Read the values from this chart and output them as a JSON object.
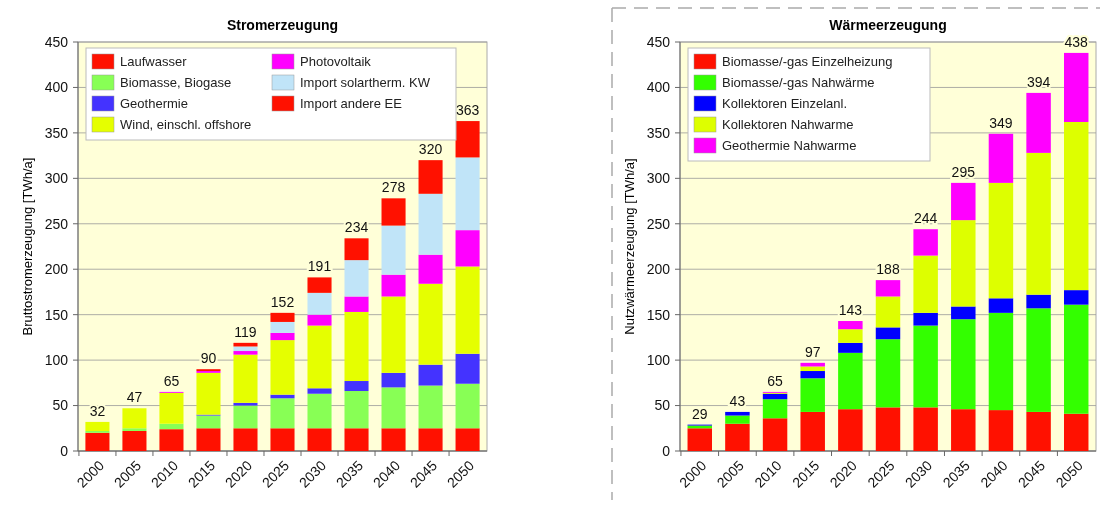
{
  "chart_data": [
    {
      "type": "bar",
      "title": "Stromerzeugung",
      "ylabel": "Bruttostromerzeugung [TWh/a]",
      "stacked": true,
      "categories": [
        "2000",
        "2005",
        "2010",
        "2015",
        "2020",
        "2025",
        "2030",
        "2035",
        "2040",
        "2045",
        "2050"
      ],
      "series": [
        {
          "name": "Laufwasser",
          "color": "#ff1100",
          "values": [
            20,
            22,
            24,
            25,
            25,
            25,
            25,
            25,
            25,
            25,
            25
          ]
        },
        {
          "name": "Biomasse, Biogase",
          "color": "#88ff55",
          "values": [
            2,
            3,
            6,
            14,
            25,
            33,
            38,
            41,
            45,
            47,
            49
          ]
        },
        {
          "name": "Geothermie",
          "color": "#4433ff",
          "values": [
            0,
            0,
            0,
            1,
            3,
            4,
            6,
            11,
            16,
            23,
            33
          ]
        },
        {
          "name": "Wind, einschl. offshore",
          "color": "#e5ff00",
          "values": [
            10,
            22,
            34,
            46,
            53,
            60,
            69,
            76,
            84,
            89,
            96
          ]
        },
        {
          "name": "Photovoltaik",
          "color": "#ff00ff",
          "values": [
            0,
            0,
            1,
            2,
            4,
            8,
            12,
            17,
            24,
            32,
            40
          ]
        },
        {
          "name": "Import solartherm. KW",
          "color": "#c0e4f8",
          "values": [
            0,
            0,
            0,
            0,
            5,
            12,
            24,
            40,
            54,
            67,
            80
          ]
        },
        {
          "name": "Import andere EE",
          "color": "#ff1100",
          "values": [
            0,
            0,
            0,
            2,
            4,
            10,
            17,
            24,
            30,
            37,
            40
          ]
        }
      ],
      "totals": [
        "32",
        "47",
        "65",
        "90",
        "119",
        "152",
        "191",
        "234",
        "278",
        "320",
        "363"
      ],
      "ylim": [
        0,
        450
      ],
      "yticks": [
        0,
        50,
        100,
        150,
        200,
        250,
        300,
        350,
        400,
        450
      ],
      "grid": "y",
      "legend": "top left"
    },
    {
      "type": "bar",
      "title": "Wärmeerzeugung",
      "ylabel": "Nutzwärmeerzeugung [TWh/a]",
      "stacked": true,
      "categories": [
        "2000",
        "2005",
        "2010",
        "2015",
        "2020",
        "2025",
        "2030",
        "2035",
        "2040",
        "2045",
        "2050"
      ],
      "series": [
        {
          "name": "Biomasse/-gas Einzelheizung",
          "color": "#ff1100",
          "values": [
            25,
            30,
            36,
            43,
            46,
            48,
            48,
            46,
            45,
            43,
            41
          ]
        },
        {
          "name": "Biomasse/-gas Nahwärme",
          "color": "#33ff00",
          "values": [
            3,
            9,
            21,
            37,
            62,
            75,
            90,
            99,
            107,
            114,
            120
          ]
        },
        {
          "name": "Kollektoren Einzelanl.",
          "color": "#0000ff",
          "values": [
            1,
            4,
            6,
            8,
            11,
            13,
            14,
            14,
            16,
            15,
            16
          ]
        },
        {
          "name": "Kollektoren  Nahwarme",
          "color": "#ddff00",
          "values": [
            0,
            0,
            1,
            5,
            15,
            34,
            63,
            95,
            127,
            156,
            185
          ]
        },
        {
          "name": "Geothermie Nahwarme",
          "color": "#ff00ff",
          "values": [
            0,
            0,
            1,
            4,
            9,
            18,
            29,
            41,
            54,
            66,
            76
          ]
        }
      ],
      "totals": [
        "29",
        "43",
        "65",
        "97",
        "143",
        "188",
        "244",
        "295",
        "349",
        "394",
        "438"
      ],
      "ylim": [
        0,
        450
      ],
      "yticks": [
        0,
        50,
        100,
        150,
        200,
        250,
        300,
        350,
        400,
        450
      ],
      "grid": "y",
      "legend": "top left"
    }
  ]
}
